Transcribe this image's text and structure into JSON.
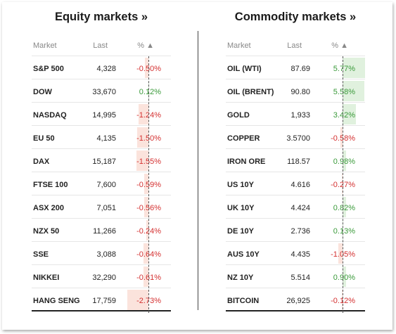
{
  "equity": {
    "title": "Equity markets »",
    "headers": {
      "market": "Market",
      "last": "Last",
      "pct": "% ▲"
    },
    "rows": [
      {
        "market": "S&P 500",
        "last": "4,328",
        "pct": "-0.50%",
        "value": -0.5
      },
      {
        "market": "DOW",
        "last": "33,670",
        "pct": "0.12%",
        "value": 0.12
      },
      {
        "market": "NASDAQ",
        "last": "14,995",
        "pct": "-1.24%",
        "value": -1.24
      },
      {
        "market": "EU 50",
        "last": "4,135",
        "pct": "-1.50%",
        "value": -1.5
      },
      {
        "market": "DAX",
        "last": "15,187",
        "pct": "-1.55%",
        "value": -1.55
      },
      {
        "market": "FTSE 100",
        "last": "7,600",
        "pct": "-0.59%",
        "value": -0.59
      },
      {
        "market": "ASX 200",
        "last": "7,051",
        "pct": "-0.56%",
        "value": -0.56
      },
      {
        "market": "NZX 50",
        "last": "11,266",
        "pct": "-0.24%",
        "value": -0.24
      },
      {
        "market": "SSE",
        "last": "3,088",
        "pct": "-0.64%",
        "value": -0.64
      },
      {
        "market": "NIKKEI",
        "last": "32,290",
        "pct": "-0.61%",
        "value": -0.61
      },
      {
        "market": "HANG SENG",
        "last": "17,759",
        "pct": "-2.73%",
        "value": -2.73
      }
    ]
  },
  "commodity": {
    "title": "Commodity markets »",
    "headers": {
      "market": "Market",
      "last": "Last",
      "pct": "% ▲"
    },
    "rows": [
      {
        "market": "OIL (WTI)",
        "last": "87.69",
        "pct": "5.77%",
        "value": 5.77
      },
      {
        "market": "OIL (BRENT)",
        "last": "90.80",
        "pct": "5.58%",
        "value": 5.58
      },
      {
        "market": "GOLD",
        "last": "1,933",
        "pct": "3.42%",
        "value": 3.42
      },
      {
        "market": "COPPER",
        "last": "3.5700",
        "pct": "-0.58%",
        "value": -0.58
      },
      {
        "market": "IRON ORE",
        "last": "118.57",
        "pct": "0.98%",
        "value": 0.98
      },
      {
        "market": "US 10Y",
        "last": "4.616",
        "pct": "-0.27%",
        "value": -0.27
      },
      {
        "market": "UK 10Y",
        "last": "4.424",
        "pct": "0.82%",
        "value": 0.82
      },
      {
        "market": "DE 10Y",
        "last": "2.736",
        "pct": "0.13%",
        "value": 0.13
      },
      {
        "market": "AUS 10Y",
        "last": "4.435",
        "pct": "-1.05%",
        "value": -1.05
      },
      {
        "market": "NZ 10Y",
        "last": "5.514",
        "pct": "0.90%",
        "value": 0.9
      },
      {
        "market": "BITCOIN",
        "last": "26,925",
        "pct": "-0.12%",
        "value": -0.12
      }
    ]
  },
  "colors": {
    "negative_text": "#d43030",
    "positive_text": "#3a9a3a",
    "negative_bar": "#fbe3dc",
    "positive_bar": "#e0f1de"
  }
}
